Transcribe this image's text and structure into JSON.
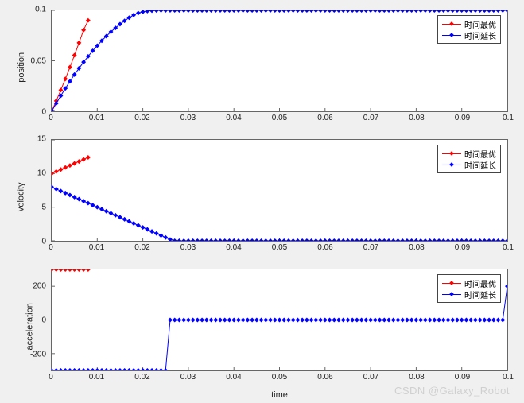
{
  "figure": {
    "watermark": "CSDN @Galaxy_Robot",
    "background_color": "#f0f0f0",
    "plot_background": "#ffffff",
    "axis_color": "#666666",
    "tick_fontsize": 10,
    "label_fontsize": 11
  },
  "xlabel": "time",
  "xticks": {
    "min": 0,
    "max": 0.1,
    "step": 0.01,
    "labels": [
      "0",
      "0.01",
      "0.02",
      "0.03",
      "0.04",
      "0.05",
      "0.06",
      "0.07",
      "0.08",
      "0.09",
      "0.1"
    ]
  },
  "legend": {
    "items": [
      {
        "label": "时间最优",
        "color": "#ff0000"
      },
      {
        "label": "时间延长",
        "color": "#0000ff"
      }
    ]
  },
  "subplots": [
    {
      "ylabel": "position",
      "ylim": [
        0,
        0.1
      ],
      "yticks": [
        0,
        0.05,
        0.1
      ],
      "ytick_labels": [
        "0",
        "0.05",
        "0.1"
      ],
      "series": [
        {
          "name": "时间最优",
          "color": "#ff0000",
          "marker": "diamond",
          "marker_size": 3,
          "line_width": 1,
          "x": [
            0,
            0.001,
            0.002,
            0.003,
            0.004,
            0.005,
            0.006,
            0.007,
            0.008
          ],
          "y": [
            0,
            0.0103,
            0.021,
            0.0321,
            0.0436,
            0.0555,
            0.0678,
            0.0805,
            0.09
          ]
        },
        {
          "name": "时间延长",
          "color": "#0000ff",
          "marker": "diamond",
          "marker_size": 3,
          "line_width": 1,
          "x": [
            0,
            0.001,
            0.002,
            0.003,
            0.004,
            0.005,
            0.006,
            0.007,
            0.008,
            0.009,
            0.01,
            0.011,
            0.012,
            0.013,
            0.014,
            0.015,
            0.016,
            0.017,
            0.018,
            0.019,
            0.02,
            0.021,
            0.022,
            0.023,
            0.024,
            0.025,
            0.026,
            0.027,
            0.028,
            0.029,
            0.03,
            0.031,
            0.032,
            0.033,
            0.034,
            0.035,
            0.036,
            0.037,
            0.038,
            0.039,
            0.04,
            0.041,
            0.042,
            0.043,
            0.044,
            0.045,
            0.046,
            0.047,
            0.048,
            0.049,
            0.05,
            0.051,
            0.052,
            0.053,
            0.054,
            0.055,
            0.056,
            0.057,
            0.058,
            0.059,
            0.06,
            0.061,
            0.062,
            0.063,
            0.064,
            0.065,
            0.066,
            0.067,
            0.068,
            0.069,
            0.07,
            0.071,
            0.072,
            0.073,
            0.074,
            0.075,
            0.076,
            0.077,
            0.078,
            0.079,
            0.08,
            0.081,
            0.082,
            0.083,
            0.084,
            0.085,
            0.086,
            0.087,
            0.088,
            0.089,
            0.09,
            0.091,
            0.092,
            0.093,
            0.094,
            0.095,
            0.096,
            0.097,
            0.098,
            0.099,
            0.1
          ],
          "y": [
            0,
            0.0079,
            0.0154,
            0.0227,
            0.0296,
            0.0363,
            0.0426,
            0.0487,
            0.0544,
            0.0599,
            0.065,
            0.0699,
            0.0744,
            0.0787,
            0.0826,
            0.0863,
            0.0896,
            0.0927,
            0.0954,
            0.0973,
            0.0985,
            0.0993,
            0.0997,
            0.0999,
            0.1,
            0.1,
            0.1,
            0.1,
            0.1,
            0.1,
            0.1,
            0.1,
            0.1,
            0.1,
            0.1,
            0.1,
            0.1,
            0.1,
            0.1,
            0.1,
            0.1,
            0.1,
            0.1,
            0.1,
            0.1,
            0.1,
            0.1,
            0.1,
            0.1,
            0.1,
            0.1,
            0.1,
            0.1,
            0.1,
            0.1,
            0.1,
            0.1,
            0.1,
            0.1,
            0.1,
            0.1,
            0.1,
            0.1,
            0.1,
            0.1,
            0.1,
            0.1,
            0.1,
            0.1,
            0.1,
            0.1,
            0.1,
            0.1,
            0.1,
            0.1,
            0.1,
            0.1,
            0.1,
            0.1,
            0.1,
            0.1,
            0.1,
            0.1,
            0.1,
            0.1,
            0.1,
            0.1,
            0.1,
            0.1,
            0.1,
            0.1,
            0.1,
            0.1,
            0.1,
            0.1,
            0.1,
            0.1,
            0.1,
            0.1,
            0.1,
            0.1
          ]
        }
      ]
    },
    {
      "ylabel": "velocity",
      "ylim": [
        0,
        15
      ],
      "yticks": [
        0,
        5,
        10,
        15
      ],
      "ytick_labels": [
        "0",
        "5",
        "10",
        "15"
      ],
      "series": [
        {
          "name": "时间最优",
          "color": "#ff0000",
          "marker": "diamond",
          "marker_size": 3,
          "line_width": 1,
          "x": [
            0,
            0.001,
            0.002,
            0.003,
            0.004,
            0.005,
            0.006,
            0.007,
            0.008
          ],
          "y": [
            10.0,
            10.3,
            10.6,
            10.9,
            11.2,
            11.5,
            11.8,
            12.1,
            12.4
          ]
        },
        {
          "name": "时间延长",
          "color": "#0000ff",
          "marker": "diamond",
          "marker_size": 3,
          "line_width": 1,
          "x": [
            0,
            0.001,
            0.002,
            0.003,
            0.004,
            0.005,
            0.006,
            0.007,
            0.008,
            0.009,
            0.01,
            0.011,
            0.012,
            0.013,
            0.014,
            0.015,
            0.016,
            0.017,
            0.018,
            0.019,
            0.02,
            0.021,
            0.022,
            0.023,
            0.024,
            0.025,
            0.026,
            0.027,
            0.028,
            0.029,
            0.03,
            0.031,
            0.032,
            0.033,
            0.034,
            0.035,
            0.036,
            0.037,
            0.038,
            0.039,
            0.04,
            0.041,
            0.042,
            0.043,
            0.044,
            0.045,
            0.046,
            0.047,
            0.048,
            0.049,
            0.05,
            0.051,
            0.052,
            0.053,
            0.054,
            0.055,
            0.056,
            0.057,
            0.058,
            0.059,
            0.06,
            0.061,
            0.062,
            0.063,
            0.064,
            0.065,
            0.066,
            0.067,
            0.068,
            0.069,
            0.07,
            0.071,
            0.072,
            0.073,
            0.074,
            0.075,
            0.076,
            0.077,
            0.078,
            0.079,
            0.08,
            0.081,
            0.082,
            0.083,
            0.084,
            0.085,
            0.086,
            0.087,
            0.088,
            0.089,
            0.09,
            0.091,
            0.092,
            0.093,
            0.094,
            0.095,
            0.096,
            0.097,
            0.098,
            0.099,
            0.1
          ],
          "y": [
            8.0,
            7.7,
            7.4,
            7.1,
            6.8,
            6.5,
            6.2,
            5.9,
            5.6,
            5.3,
            5.0,
            4.7,
            4.4,
            4.1,
            3.8,
            3.5,
            3.2,
            2.9,
            2.6,
            2.3,
            2.0,
            1.7,
            1.4,
            1.1,
            0.8,
            0.5,
            0.2,
            0,
            0,
            0,
            0,
            0,
            0,
            0,
            0,
            0,
            0,
            0,
            0,
            0,
            0,
            0,
            0,
            0,
            0,
            0,
            0,
            0,
            0,
            0,
            0,
            0,
            0,
            0,
            0,
            0,
            0,
            0,
            0,
            0,
            0,
            0,
            0,
            0,
            0,
            0,
            0,
            0,
            0,
            0,
            0,
            0,
            0,
            0,
            0,
            0,
            0,
            0,
            0,
            0,
            0,
            0,
            0,
            0,
            0,
            0,
            0,
            0,
            0,
            0,
            0,
            0,
            0,
            0,
            0,
            0,
            0,
            0,
            0,
            0,
            0
          ]
        }
      ]
    },
    {
      "ylabel": "acceleration",
      "ylim": [
        -300,
        300
      ],
      "yticks": [
        -200,
        0,
        200
      ],
      "ytick_labels": [
        "-200",
        "0",
        "200"
      ],
      "xlabel_show": true,
      "series": [
        {
          "name": "时间最优",
          "color": "#ff0000",
          "marker": "diamond",
          "marker_size": 3,
          "line_width": 1,
          "x": [
            0,
            0.001,
            0.002,
            0.003,
            0.004,
            0.005,
            0.006,
            0.007,
            0.008
          ],
          "y": [
            300,
            300,
            300,
            300,
            300,
            300,
            300,
            300,
            300
          ]
        },
        {
          "name": "时间延长",
          "color": "#0000ff",
          "marker": "diamond",
          "marker_size": 3,
          "line_width": 1,
          "x": [
            0,
            0.001,
            0.002,
            0.003,
            0.004,
            0.005,
            0.006,
            0.007,
            0.008,
            0.009,
            0.01,
            0.011,
            0.012,
            0.013,
            0.014,
            0.015,
            0.016,
            0.017,
            0.018,
            0.019,
            0.02,
            0.021,
            0.022,
            0.023,
            0.024,
            0.025,
            0.026,
            0.027,
            0.028,
            0.029,
            0.03,
            0.031,
            0.032,
            0.033,
            0.034,
            0.035,
            0.036,
            0.037,
            0.038,
            0.039,
            0.04,
            0.041,
            0.042,
            0.043,
            0.044,
            0.045,
            0.046,
            0.047,
            0.048,
            0.049,
            0.05,
            0.051,
            0.052,
            0.053,
            0.054,
            0.055,
            0.056,
            0.057,
            0.058,
            0.059,
            0.06,
            0.061,
            0.062,
            0.063,
            0.064,
            0.065,
            0.066,
            0.067,
            0.068,
            0.069,
            0.07,
            0.071,
            0.072,
            0.073,
            0.074,
            0.075,
            0.076,
            0.077,
            0.078,
            0.079,
            0.08,
            0.081,
            0.082,
            0.083,
            0.084,
            0.085,
            0.086,
            0.087,
            0.088,
            0.089,
            0.09,
            0.091,
            0.092,
            0.093,
            0.094,
            0.095,
            0.096,
            0.097,
            0.098,
            0.099,
            0.1
          ],
          "y": [
            -300,
            -300,
            -300,
            -300,
            -300,
            -300,
            -300,
            -300,
            -300,
            -300,
            -300,
            -300,
            -300,
            -300,
            -300,
            -300,
            -300,
            -300,
            -300,
            -300,
            -300,
            -300,
            -300,
            -300,
            -300,
            -300,
            0,
            0,
            0,
            0,
            0,
            0,
            0,
            0,
            0,
            0,
            0,
            0,
            0,
            0,
            0,
            0,
            0,
            0,
            0,
            0,
            0,
            0,
            0,
            0,
            0,
            0,
            0,
            0,
            0,
            0,
            0,
            0,
            0,
            0,
            0,
            0,
            0,
            0,
            0,
            0,
            0,
            0,
            0,
            0,
            0,
            0,
            0,
            0,
            0,
            0,
            0,
            0,
            0,
            0,
            0,
            0,
            0,
            0,
            0,
            0,
            0,
            0,
            0,
            0,
            0,
            0,
            0,
            0,
            0,
            0,
            0,
            0,
            0,
            0,
            200
          ]
        }
      ]
    }
  ]
}
